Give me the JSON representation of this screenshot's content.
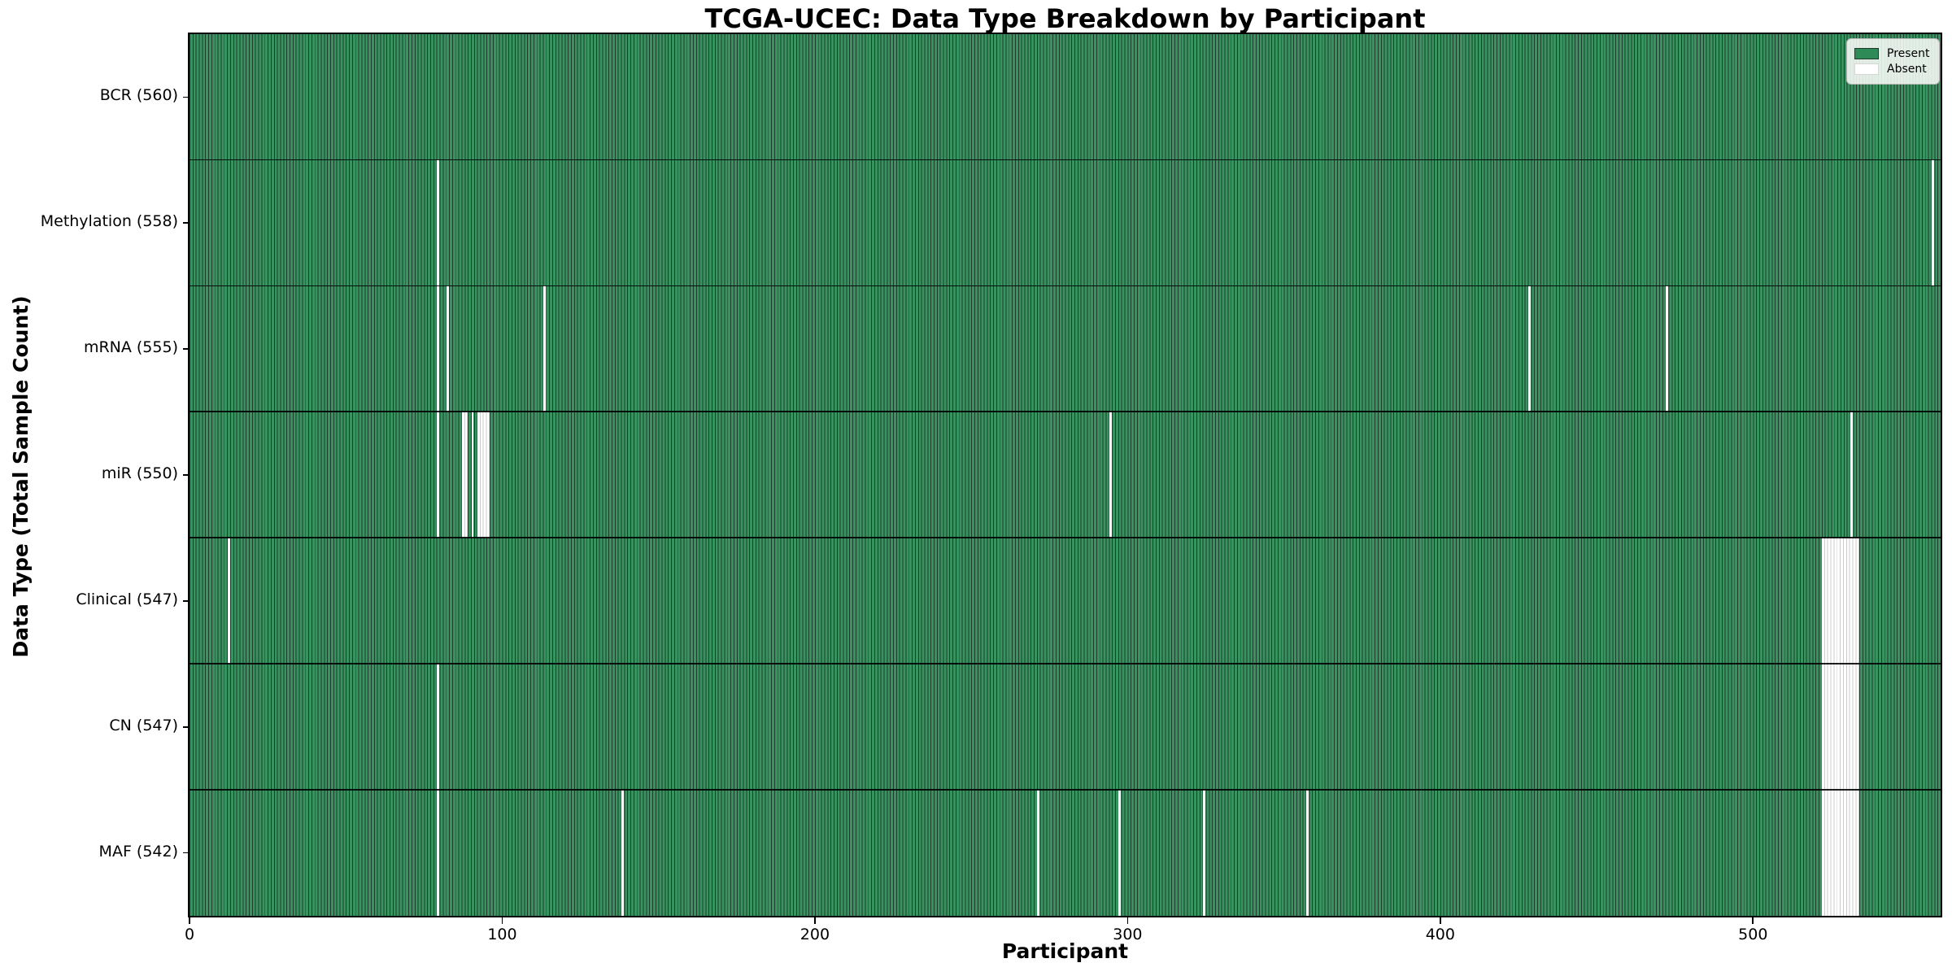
{
  "chart_data": {
    "type": "heatmap",
    "title": "TCGA-UCEC: Data Type Breakdown by Participant",
    "xlabel": "Participant",
    "ylabel": "Data Type (Total Sample Count)",
    "n_participants": 560,
    "x_ticks": [
      0,
      100,
      200,
      300,
      400,
      500
    ],
    "x_tick_labels": [
      "0",
      "100",
      "200",
      "300",
      "400",
      "500"
    ],
    "grid": "cell-edges-visible",
    "legend": {
      "position": "upper right",
      "entries": [
        {
          "label": "Present",
          "color": "#2e8b57"
        },
        {
          "label": "Absent",
          "color": "#ffffff"
        }
      ]
    },
    "colors": {
      "present_fill": "#389360",
      "present_edge": "#1e3c2b",
      "absent_fill": "#ffffff",
      "absent_edge": "#cbcbcb",
      "row_separator": "#000000"
    },
    "rows": [
      {
        "label": "BCR (560)",
        "name": "BCR",
        "present_count": 560,
        "absent_participants": []
      },
      {
        "label": "Methylation (558)",
        "name": "Methylation",
        "present_count": 558,
        "absent_participants": [
          79,
          557
        ]
      },
      {
        "label": "mRNA (555)",
        "name": "mRNA",
        "present_count": 555,
        "absent_participants": [
          79,
          82,
          113,
          428,
          472
        ]
      },
      {
        "label": "miR (550)",
        "name": "miR",
        "present_count": 550,
        "absent_participants": [
          79,
          87,
          88,
          90,
          92,
          93,
          94,
          95,
          294,
          531
        ]
      },
      {
        "label": "Clinical (547)",
        "name": "Clinical",
        "present_count": 547,
        "absent_participants": [
          12,
          522,
          523,
          524,
          525,
          526,
          527,
          528,
          529,
          530,
          531,
          532,
          533
        ]
      },
      {
        "label": "CN (547)",
        "name": "CN",
        "present_count": 547,
        "absent_participants": [
          79,
          522,
          523,
          524,
          525,
          526,
          527,
          528,
          529,
          530,
          531,
          532,
          533
        ]
      },
      {
        "label": "MAF (542)",
        "name": "MAF",
        "present_count": 542,
        "absent_participants": [
          79,
          138,
          271,
          297,
          324,
          357,
          522,
          523,
          524,
          525,
          526,
          527,
          528,
          529,
          530,
          531,
          532,
          533
        ]
      }
    ]
  }
}
